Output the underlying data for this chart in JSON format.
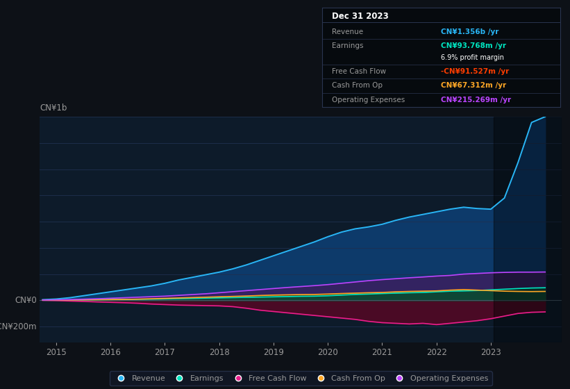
{
  "background_color": "#0d1117",
  "plot_bg_color": "#0d1b2a",
  "grid_color": "#1e3050",
  "text_color": "#9a9a9a",
  "ylim": [
    -320,
    1400
  ],
  "xlim_start": 2014.7,
  "xlim_end": 2024.3,
  "years": [
    2014.75,
    2015.0,
    2015.25,
    2015.5,
    2015.75,
    2016.0,
    2016.25,
    2016.5,
    2016.75,
    2017.0,
    2017.25,
    2017.5,
    2017.75,
    2018.0,
    2018.25,
    2018.5,
    2018.75,
    2019.0,
    2019.25,
    2019.5,
    2019.75,
    2020.0,
    2020.25,
    2020.5,
    2020.75,
    2021.0,
    2021.25,
    2021.5,
    2021.75,
    2022.0,
    2022.25,
    2022.5,
    2022.75,
    2023.0,
    2023.25,
    2023.5,
    2023.75,
    2024.0
  ],
  "revenue": [
    5,
    10,
    20,
    35,
    50,
    65,
    80,
    95,
    110,
    130,
    155,
    175,
    195,
    215,
    240,
    270,
    305,
    340,
    375,
    410,
    445,
    485,
    520,
    545,
    560,
    580,
    610,
    635,
    655,
    675,
    695,
    710,
    700,
    695,
    780,
    1050,
    1356,
    1400
  ],
  "earnings": [
    1,
    2,
    3,
    4,
    5,
    6,
    7,
    8,
    9,
    11,
    13,
    15,
    17,
    19,
    21,
    23,
    25,
    27,
    29,
    31,
    32,
    35,
    40,
    45,
    48,
    52,
    55,
    58,
    60,
    65,
    70,
    72,
    75,
    80,
    85,
    90,
    94,
    96
  ],
  "free_cash_flow": [
    0,
    -2,
    -5,
    -8,
    -12,
    -15,
    -18,
    -22,
    -28,
    -32,
    -36,
    -38,
    -40,
    -42,
    -48,
    -60,
    -75,
    -85,
    -95,
    -105,
    -115,
    -125,
    -135,
    -145,
    -160,
    -170,
    -175,
    -180,
    -175,
    -185,
    -175,
    -165,
    -155,
    -140,
    -120,
    -100,
    -91,
    -88
  ],
  "cash_from_op": [
    1,
    2,
    3,
    4,
    5,
    6,
    7,
    9,
    12,
    15,
    18,
    21,
    24,
    27,
    30,
    33,
    37,
    40,
    42,
    44,
    45,
    48,
    52,
    55,
    58,
    60,
    65,
    68,
    70,
    72,
    78,
    82,
    78,
    74,
    70,
    68,
    67,
    68
  ],
  "op_expenses": [
    2,
    4,
    6,
    9,
    12,
    16,
    20,
    24,
    28,
    32,
    38,
    44,
    50,
    58,
    66,
    74,
    82,
    90,
    98,
    105,
    112,
    120,
    130,
    140,
    150,
    158,
    165,
    172,
    178,
    185,
    190,
    200,
    205,
    210,
    213,
    215,
    215,
    216
  ],
  "revenue_color": "#29b6f6",
  "earnings_color": "#00e5c0",
  "fcf_color": "#e91e8c",
  "cashop_color": "#ffa726",
  "opex_color": "#bb44ff",
  "revenue_fill": "#0d3a6a",
  "earnings_fill": "#0a4a3a",
  "fcf_fill": "#4a0a25",
  "cashop_fill": "#3a2800",
  "opex_fill": "#3a2060",
  "legend_items": [
    "Revenue",
    "Earnings",
    "Free Cash Flow",
    "Cash From Op",
    "Operating Expenses"
  ],
  "highlight_x_start": 2023.05,
  "highlight_x_end": 2024.3,
  "tooltip_box_color": "#060a0e",
  "tooltip_border_color": "#2a3550",
  "info_title": "Dec 31 2023",
  "info_revenue_label": "Revenue",
  "info_revenue_value": "CN¥1.356b /yr",
  "info_earnings_label": "Earnings",
  "info_earnings_value": "CN¥93.768m /yr",
  "info_margin": "6.9% profit margin",
  "info_fcf_label": "Free Cash Flow",
  "info_fcf_value": "-CN¥91.527m /yr",
  "info_cashop_label": "Cash From Op",
  "info_cashop_value": "CN¥67.312m /yr",
  "info_opex_label": "Operating Expenses",
  "info_opex_value": "CN¥215.269m /yr",
  "revenue_value_color": "#29b6f6",
  "earnings_value_color": "#00e5c0",
  "fcf_value_color": "#ff3d00",
  "cashop_value_color": "#ffa726",
  "opex_value_color": "#bb44ff",
  "margin_value_color": "#ffffff",
  "y_label_top": "CN¥1b",
  "y_label_zero": "CN¥0",
  "y_label_neg": "-CN¥200m"
}
